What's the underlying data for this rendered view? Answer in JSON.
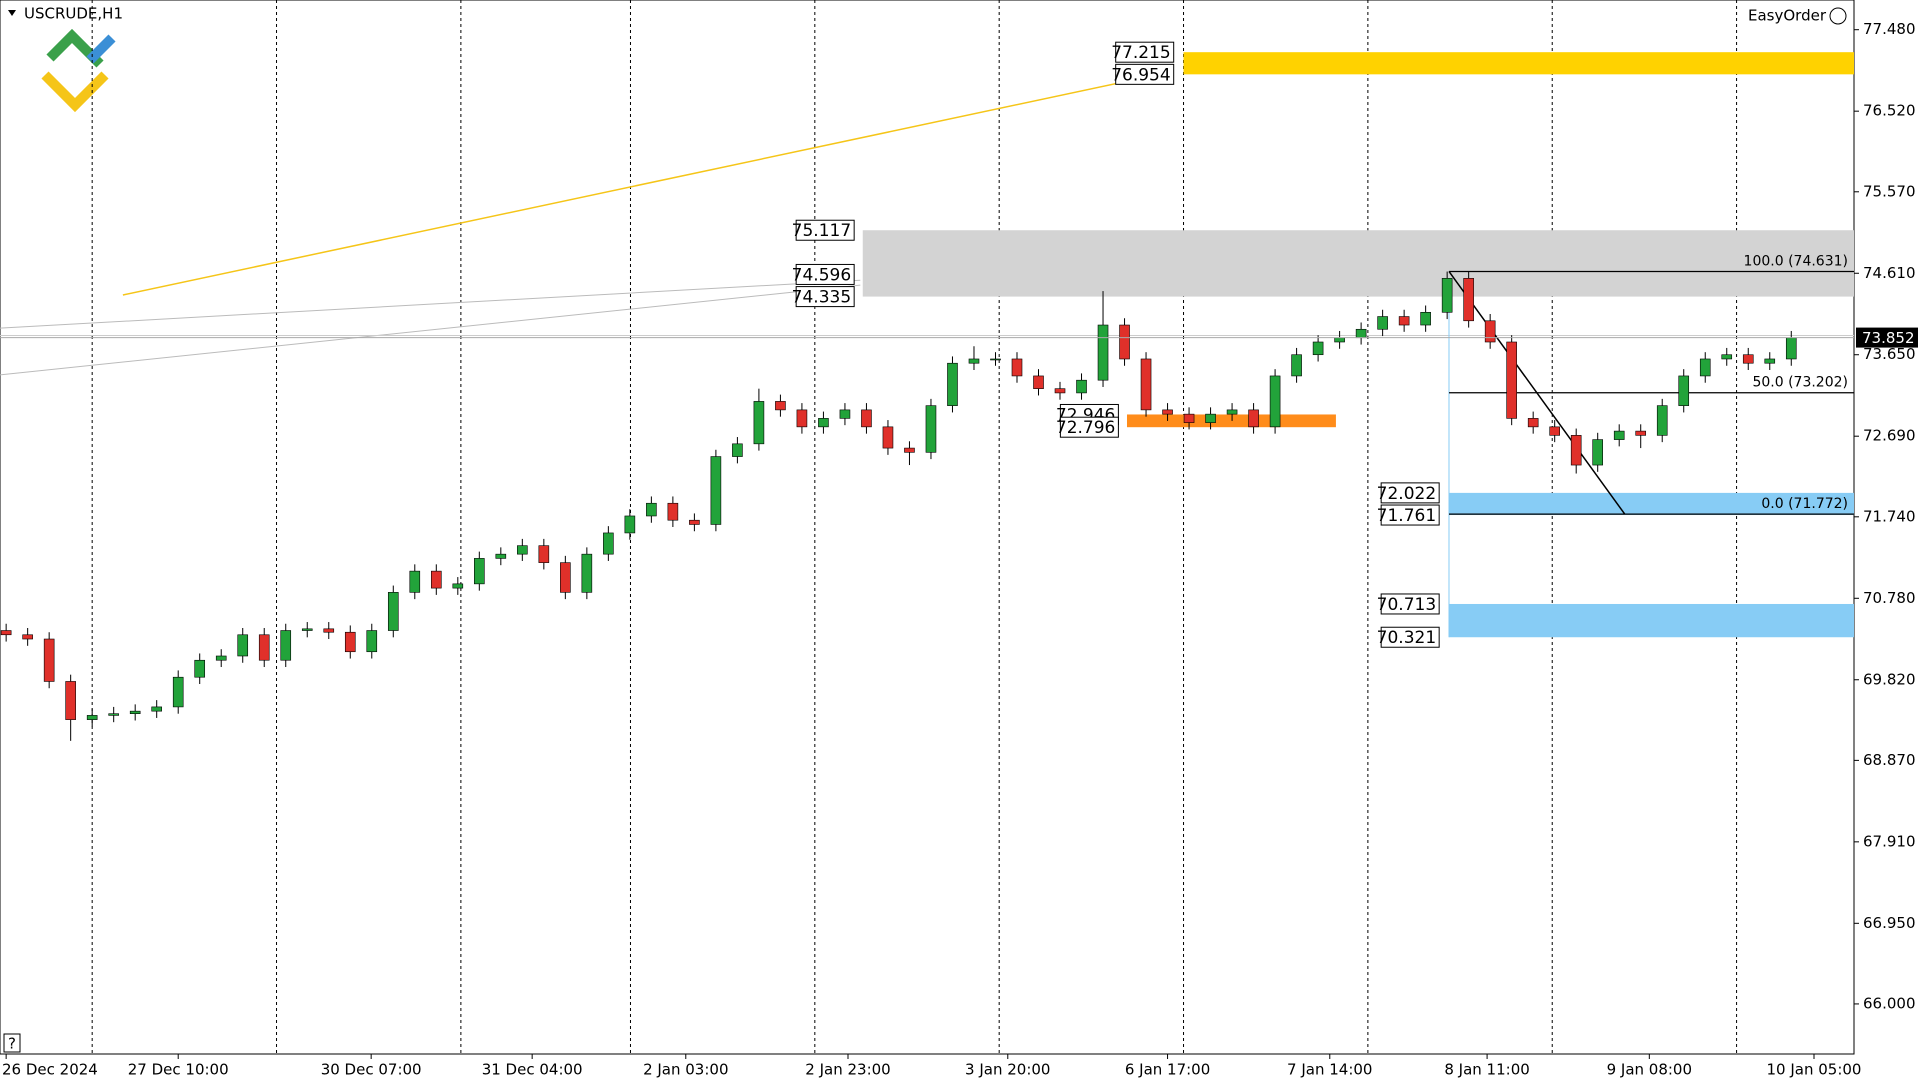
{
  "chart_data": {
    "type": "candlestick",
    "title": "USCRUDE,H1",
    "widget": "EasyOrder",
    "help": "?",
    "ylim": [
      65.41,
      77.83
    ],
    "yticks": [
      {
        "value": 77.48,
        "label": "77.480"
      },
      {
        "value": 76.52,
        "label": "76.520"
      },
      {
        "value": 75.57,
        "label": "75.570"
      },
      {
        "value": 74.61,
        "label": "74.610"
      },
      {
        "value": 73.65,
        "label": "73.650"
      },
      {
        "value": 72.69,
        "label": "72.690"
      },
      {
        "value": 71.74,
        "label": "71.740"
      },
      {
        "value": 70.78,
        "label": "70.780"
      },
      {
        "value": 69.82,
        "label": "69.820"
      },
      {
        "value": 68.87,
        "label": "68.870"
      },
      {
        "value": 67.91,
        "label": "67.910"
      },
      {
        "value": 66.95,
        "label": "66.950"
      },
      {
        "value": 66.0,
        "label": "66.000"
      }
    ],
    "xlabels": [
      "26 Dec 2024",
      "27 Dec 10:00",
      "30 Dec 07:00",
      "31 Dec 04:00",
      "2 Jan 03:00",
      "2 Jan 23:00",
      "3 Jan 20:00",
      "6 Jan 17:00",
      "7 Jan 14:00",
      "8 Jan 11:00",
      "9 Jan 08:00",
      "10 Jan 05:00"
    ],
    "current_price": {
      "value": 73.852,
      "label": "73.852"
    },
    "up_color": "#22a33a",
    "down_color": "#e0302a",
    "open": [
      70.4,
      70.35,
      70.3,
      69.8,
      69.35,
      69.4,
      69.42,
      69.45,
      69.5,
      69.85,
      70.05,
      70.1,
      70.35,
      70.05,
      70.4,
      70.42,
      70.38,
      70.15,
      70.4,
      70.85,
      71.1,
      70.9,
      70.95,
      71.25,
      71.3,
      71.4,
      71.2,
      70.85,
      71.3,
      71.55,
      71.75,
      71.9,
      71.7,
      71.65,
      72.45,
      72.6,
      73.1,
      73.0,
      72.8,
      72.9,
      73.0,
      72.8,
      72.55,
      72.5,
      73.05,
      73.55,
      73.6,
      73.6,
      73.4,
      73.25,
      73.2,
      73.35,
      74.0,
      73.6,
      73.0,
      72.95,
      72.85,
      72.95,
      73.0,
      72.8,
      73.4,
      73.65,
      73.8,
      73.85,
      73.95,
      74.1,
      74.0,
      74.15,
      74.55,
      74.05,
      73.8,
      72.9,
      72.8,
      72.7,
      72.35,
      72.65,
      72.75,
      72.7,
      73.05,
      73.4,
      73.6,
      73.65,
      73.55,
      73.6
    ],
    "high": [
      70.48,
      70.43,
      70.38,
      69.88,
      69.48,
      69.5,
      69.53,
      69.58,
      69.93,
      70.13,
      70.18,
      70.43,
      70.43,
      70.48,
      70.5,
      70.5,
      70.46,
      70.48,
      70.93,
      71.18,
      71.18,
      71.03,
      71.33,
      71.38,
      71.48,
      71.48,
      71.28,
      71.38,
      71.63,
      71.83,
      71.98,
      71.98,
      71.78,
      72.53,
      72.68,
      73.25,
      73.18,
      73.08,
      72.98,
      73.08,
      73.08,
      72.88,
      72.63,
      73.13,
      73.63,
      73.75,
      73.68,
      73.68,
      73.48,
      73.33,
      73.43,
      74.4,
      74.08,
      73.68,
      73.08,
      73.03,
      73.03,
      73.08,
      73.08,
      73.48,
      73.73,
      73.88,
      73.93,
      74.03,
      74.18,
      74.18,
      74.23,
      74.63,
      74.63,
      74.13,
      73.88,
      72.98,
      72.88,
      72.78,
      72.73,
      72.83,
      72.83,
      73.13,
      73.48,
      73.68,
      73.73,
      73.73,
      73.68,
      73.93
    ],
    "low": [
      70.27,
      70.22,
      69.72,
      69.1,
      69.27,
      69.32,
      69.34,
      69.37,
      69.42,
      69.77,
      69.97,
      70.02,
      69.97,
      69.97,
      70.32,
      70.3,
      70.07,
      70.07,
      70.32,
      70.77,
      70.82,
      70.82,
      70.87,
      71.17,
      71.22,
      71.12,
      70.77,
      70.77,
      71.22,
      71.47,
      71.67,
      71.62,
      71.57,
      71.57,
      72.37,
      72.52,
      72.92,
      72.72,
      72.72,
      72.82,
      72.72,
      72.47,
      72.35,
      72.42,
      72.97,
      73.47,
      73.52,
      73.32,
      73.17,
      73.12,
      73.12,
      73.27,
      73.52,
      72.92,
      72.87,
      72.77,
      72.77,
      72.87,
      72.72,
      72.72,
      73.32,
      73.57,
      73.72,
      73.77,
      73.87,
      73.92,
      73.92,
      74.07,
      73.97,
      73.72,
      72.82,
      72.72,
      72.62,
      72.25,
      72.27,
      72.57,
      72.55,
      72.62,
      72.97,
      73.32,
      73.52,
      73.47,
      73.47,
      73.52
    ],
    "close": [
      70.35,
      70.3,
      69.8,
      69.35,
      69.4,
      69.42,
      69.45,
      69.5,
      69.85,
      70.05,
      70.1,
      70.35,
      70.05,
      70.4,
      70.42,
      70.38,
      70.15,
      70.4,
      70.85,
      71.1,
      70.9,
      70.95,
      71.25,
      71.3,
      71.4,
      71.2,
      70.85,
      71.3,
      71.55,
      71.75,
      71.9,
      71.7,
      71.65,
      72.45,
      72.6,
      73.1,
      73.0,
      72.8,
      72.9,
      73.0,
      72.8,
      72.55,
      72.5,
      73.05,
      73.55,
      73.6,
      73.6,
      73.4,
      73.25,
      73.2,
      73.35,
      74.0,
      73.6,
      73.0,
      72.95,
      72.85,
      72.95,
      73.0,
      72.8,
      73.4,
      73.65,
      73.8,
      73.85,
      73.95,
      74.1,
      74.0,
      74.15,
      74.55,
      74.05,
      73.8,
      72.9,
      72.8,
      72.7,
      72.35,
      72.65,
      72.75,
      72.7,
      73.05,
      73.4,
      73.6,
      73.65,
      73.55,
      73.6,
      73.85
    ],
    "zones": [
      {
        "color": "#ffd200",
        "top": {
          "value": 77.215,
          "label": "77.215"
        },
        "bottom": {
          "value": 76.954,
          "label": "76.954"
        }
      },
      {
        "color": "#d3d3d3",
        "top": {
          "value": 75.117,
          "label": "75.117"
        },
        "bottom": {
          "value": 74.335,
          "label": "74.335"
        },
        "mid": {
          "value": 74.596,
          "label": "74.596"
        }
      },
      {
        "color": "#ff8c1a",
        "top": {
          "value": 72.946,
          "label": "72.946"
        },
        "bottom": {
          "value": 72.796,
          "label": "72.796"
        }
      },
      {
        "color": "#87ccf5",
        "top": {
          "value": 72.022,
          "label": "72.022"
        },
        "bottom": {
          "value": 71.761,
          "label": "71.761"
        }
      },
      {
        "color": "#87ccf5",
        "top": {
          "value": 70.713,
          "label": "70.713"
        },
        "bottom": {
          "value": 70.321,
          "label": "70.321"
        }
      }
    ],
    "fibo": [
      {
        "value": 74.631,
        "label": "100.0 (74.631)"
      },
      {
        "value": 73.202,
        "label": "50.0 (73.202)"
      },
      {
        "value": 71.772,
        "label": "0.0 (71.772)"
      }
    ]
  }
}
